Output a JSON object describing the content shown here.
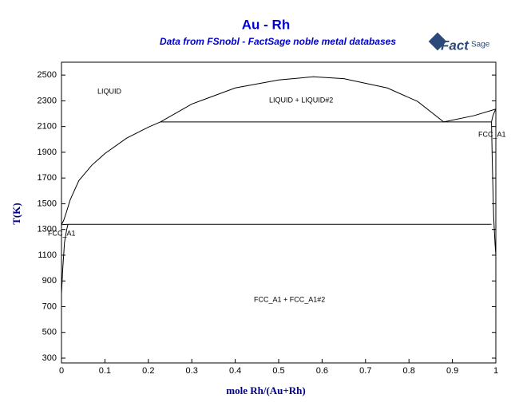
{
  "chart_data": {
    "type": "line",
    "title": "Au - Rh",
    "subtitle": "Data from FSnobl - FactSage noble metal databases",
    "logo": {
      "main": "Fact",
      "sub": "Sage"
    },
    "x_label": "mole Rh/(Au+Rh)",
    "y_label": "T(K)",
    "annotations": [
      "LIQUID",
      "LIQUID + LIQUID#2",
      "FCC_A1",
      "FCC_A1",
      "FCC_A1 + FCC_A1#2"
    ],
    "xlim": [
      0,
      1
    ],
    "ylim": [
      300,
      2600
    ],
    "xticks": [
      0,
      0.1,
      0.2,
      0.3,
      0.4,
      0.5,
      0.6,
      0.7,
      0.8,
      0.9,
      1
    ],
    "yticks": [
      300,
      500,
      700,
      900,
      1100,
      1300,
      1500,
      1700,
      1900,
      2100,
      2300,
      2500
    ],
    "color": "#000000",
    "series": [
      {
        "x": [
          0,
          0.005,
          0.01,
          0.02,
          0.04,
          0.07,
          0.1,
          0.15,
          0.2,
          0.228
        ],
        "values": [
          1337,
          1370,
          1420,
          1530,
          1680,
          1800,
          1890,
          2010,
          2095,
          2136
        ]
      },
      {
        "x": [
          0.228,
          0.3,
          0.4,
          0.5,
          0.58,
          0.65,
          0.75,
          0.82,
          0.88
        ],
        "values": [
          2136,
          2275,
          2400,
          2462,
          2487,
          2472,
          2400,
          2295,
          2136
        ]
      },
      {
        "x": [
          0.88,
          0.95,
          1
        ],
        "values": [
          2136,
          2185,
          2236
        ]
      },
      {
        "x": [
          0.228,
          0.99
        ],
        "values": [
          2136,
          2136
        ]
      },
      {
        "x": [
          0.99,
          0.993,
          0.997,
          1
        ],
        "values": [
          2136,
          2180,
          2215,
          2236
        ]
      },
      {
        "x": [
          0.99,
          0.992,
          0.995,
          0.998,
          1
        ],
        "values": [
          2136,
          1800,
          1400,
          1200,
          1100
        ]
      },
      {
        "x": [
          0.015,
          0.99
        ],
        "values": [
          1340,
          1340
        ]
      },
      {
        "x": [
          0,
          0.003,
          0.007,
          0.012,
          0.015
        ],
        "values": [
          800,
          1000,
          1200,
          1300,
          1340
        ]
      },
      {
        "x": [
          0,
          0.015
        ],
        "values": [
          1337,
          1340
        ]
      }
    ]
  }
}
